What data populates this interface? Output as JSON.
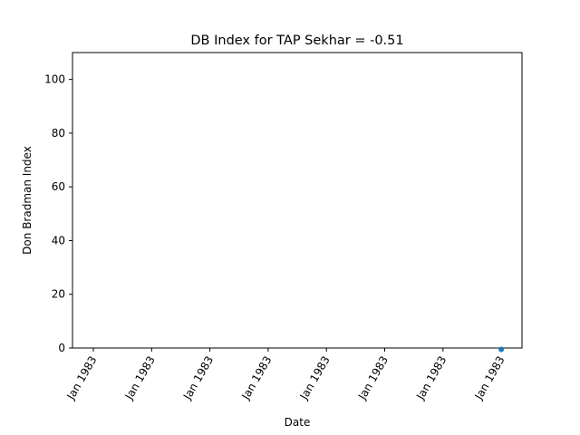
{
  "chart_data": {
    "type": "scatter",
    "title": "DB Index for TAP Sekhar = -0.51",
    "xlabel": "Date",
    "ylabel": "Don Bradman Index",
    "ylim": [
      0,
      110
    ],
    "yticks": [
      0,
      20,
      40,
      60,
      80,
      100
    ],
    "xtick_labels": [
      "Jan 1983",
      "Jan 1983",
      "Jan 1983",
      "Jan 1983",
      "Jan 1983",
      "Jan 1983",
      "Jan 1983",
      "Jan 1983"
    ],
    "points": [
      {
        "x": "Jan 1983",
        "y": -0.51
      }
    ],
    "marker_color": "#1f77b4",
    "grid": false,
    "legend": "none"
  }
}
